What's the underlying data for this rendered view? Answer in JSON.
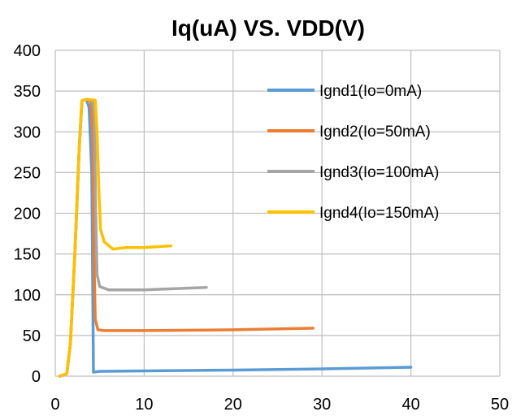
{
  "chart_data": {
    "type": "line",
    "title": "Iq(uA) VS. VDD(V)",
    "xlabel": "",
    "ylabel": "",
    "xlim": [
      0,
      50
    ],
    "ylim": [
      0,
      400
    ],
    "xticks": [
      0,
      10,
      20,
      30,
      40,
      50
    ],
    "yticks": [
      0,
      50,
      100,
      150,
      200,
      250,
      300,
      350,
      400
    ],
    "grid": true,
    "legend_position": "top-right",
    "series": [
      {
        "name": "Ignd1(Io=0mA)",
        "color": "#5b9bd5",
        "points": [
          [
            0.5,
            0
          ],
          [
            1.3,
            3
          ],
          [
            1.7,
            40
          ],
          [
            2.2,
            150
          ],
          [
            2.7,
            280
          ],
          [
            3.0,
            338
          ],
          [
            3.5,
            340
          ],
          [
            3.8,
            330
          ],
          [
            4.1,
            250
          ],
          [
            4.3,
            5
          ],
          [
            5,
            6
          ],
          [
            10,
            6.5
          ],
          [
            20,
            7.5
          ],
          [
            30,
            9
          ],
          [
            40,
            11
          ]
        ]
      },
      {
        "name": "Ignd2(Io=50mA)",
        "color": "#ed7d31",
        "points": [
          [
            0.5,
            0
          ],
          [
            1.3,
            3
          ],
          [
            1.7,
            40
          ],
          [
            2.2,
            150
          ],
          [
            2.7,
            280
          ],
          [
            3.0,
            338
          ],
          [
            3.5,
            340
          ],
          [
            4.0,
            338
          ],
          [
            4.2,
            300
          ],
          [
            4.35,
            150
          ],
          [
            4.5,
            70
          ],
          [
            4.8,
            57
          ],
          [
            5.5,
            56
          ],
          [
            10,
            56
          ],
          [
            20,
            57
          ],
          [
            29,
            59
          ]
        ]
      },
      {
        "name": "Ignd3(Io=100mA)",
        "color": "#a5a5a5",
        "points": [
          [
            0.5,
            0
          ],
          [
            1.3,
            3
          ],
          [
            1.7,
            40
          ],
          [
            2.2,
            150
          ],
          [
            2.7,
            280
          ],
          [
            3.0,
            338
          ],
          [
            3.5,
            340
          ],
          [
            4.2,
            339
          ],
          [
            4.4,
            320
          ],
          [
            4.55,
            200
          ],
          [
            4.7,
            125
          ],
          [
            5.0,
            110
          ],
          [
            6,
            106
          ],
          [
            10,
            106
          ],
          [
            17,
            109
          ]
        ]
      },
      {
        "name": "Ignd4(Io=150mA)",
        "color": "#ffc000",
        "points": [
          [
            0.5,
            0
          ],
          [
            1.3,
            3
          ],
          [
            1.7,
            40
          ],
          [
            2.2,
            150
          ],
          [
            2.7,
            280
          ],
          [
            3.0,
            338
          ],
          [
            3.5,
            340
          ],
          [
            4.5,
            339
          ],
          [
            4.7,
            300
          ],
          [
            4.9,
            230
          ],
          [
            5.1,
            180
          ],
          [
            5.5,
            165
          ],
          [
            6.5,
            156
          ],
          [
            8,
            158
          ],
          [
            10,
            158
          ],
          [
            13,
            160
          ]
        ]
      }
    ]
  }
}
